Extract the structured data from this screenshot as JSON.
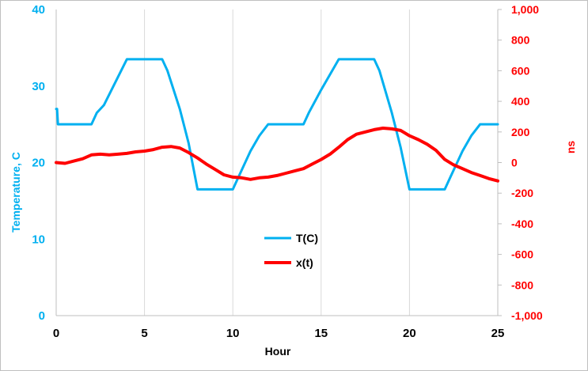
{
  "chart_data": {
    "type": "line",
    "xlabel": "Hour",
    "ylabel_left": "Temperature, C",
    "ylabel_right": "ns",
    "xlim": [
      0,
      25
    ],
    "ylim_left": [
      0,
      40
    ],
    "ylim_right": [
      -1000,
      1000
    ],
    "x_ticks": [
      0,
      5,
      10,
      15,
      20,
      25
    ],
    "y_left_ticks": [
      0,
      10,
      20,
      30,
      40
    ],
    "y_right_ticks": [
      "-1,000",
      "-800",
      "-600",
      "-400",
      "-200",
      "0",
      "200",
      "400",
      "600",
      "800",
      "1,000"
    ],
    "y_right_tick_values": [
      -1000,
      -800,
      -600,
      -400,
      -200,
      0,
      200,
      400,
      600,
      800,
      1000
    ],
    "grid": "vertical",
    "legend_position": "center",
    "colors": {
      "T": "#00b0f0",
      "x": "#ff0000"
    },
    "series": [
      {
        "name": "T(C)",
        "axis": "left",
        "x": [
          0,
          0.05,
          0.1,
          1,
          2,
          2.3,
          2.7,
          4,
          4.3,
          5,
          5.5,
          6,
          6.3,
          7,
          7.5,
          8,
          8.5,
          9,
          10,
          10.3,
          11,
          11.5,
          12,
          12.3,
          13,
          14,
          14.3,
          15,
          16,
          16.5,
          17,
          17.5,
          18,
          18.3,
          19,
          19.5,
          20,
          20.5,
          21,
          22,
          22.3,
          23,
          23.5,
          24,
          25
        ],
        "values": [
          27,
          27,
          25,
          25,
          25,
          26.5,
          27.5,
          33.5,
          33.5,
          33.5,
          33.5,
          33.5,
          32,
          27,
          22.5,
          16.5,
          16.5,
          16.5,
          16.5,
          18,
          21.5,
          23.5,
          25,
          25,
          25,
          25,
          26.5,
          29.5,
          33.5,
          33.5,
          33.5,
          33.5,
          33.5,
          32,
          26.5,
          22,
          16.5,
          16.5,
          16.5,
          16.5,
          18,
          21.5,
          23.5,
          25,
          25
        ]
      },
      {
        "name": "x(t)",
        "axis": "right",
        "x": [
          0,
          0.5,
          1,
          1.5,
          2,
          2.5,
          3,
          3.5,
          4,
          4.5,
          5,
          5.5,
          6,
          6.5,
          7,
          7.5,
          8,
          8.5,
          9,
          9.5,
          10,
          10.5,
          11,
          11.5,
          12,
          12.5,
          13,
          13.5,
          14,
          14.5,
          15,
          15.5,
          16,
          16.5,
          17,
          17.5,
          18,
          18.5,
          19,
          19.5,
          20,
          20.5,
          21,
          21.5,
          22,
          22.5,
          23,
          23.5,
          24,
          24.5,
          25
        ],
        "values": [
          0,
          -5,
          10,
          25,
          50,
          55,
          50,
          55,
          60,
          70,
          75,
          85,
          100,
          105,
          95,
          65,
          30,
          -10,
          -45,
          -80,
          -95,
          -100,
          -110,
          -100,
          -95,
          -85,
          -70,
          -55,
          -40,
          -10,
          20,
          55,
          100,
          150,
          185,
          200,
          215,
          225,
          220,
          210,
          175,
          150,
          120,
          80,
          20,
          -15,
          -40,
          -65,
          -85,
          -105,
          -120
        ]
      }
    ]
  }
}
